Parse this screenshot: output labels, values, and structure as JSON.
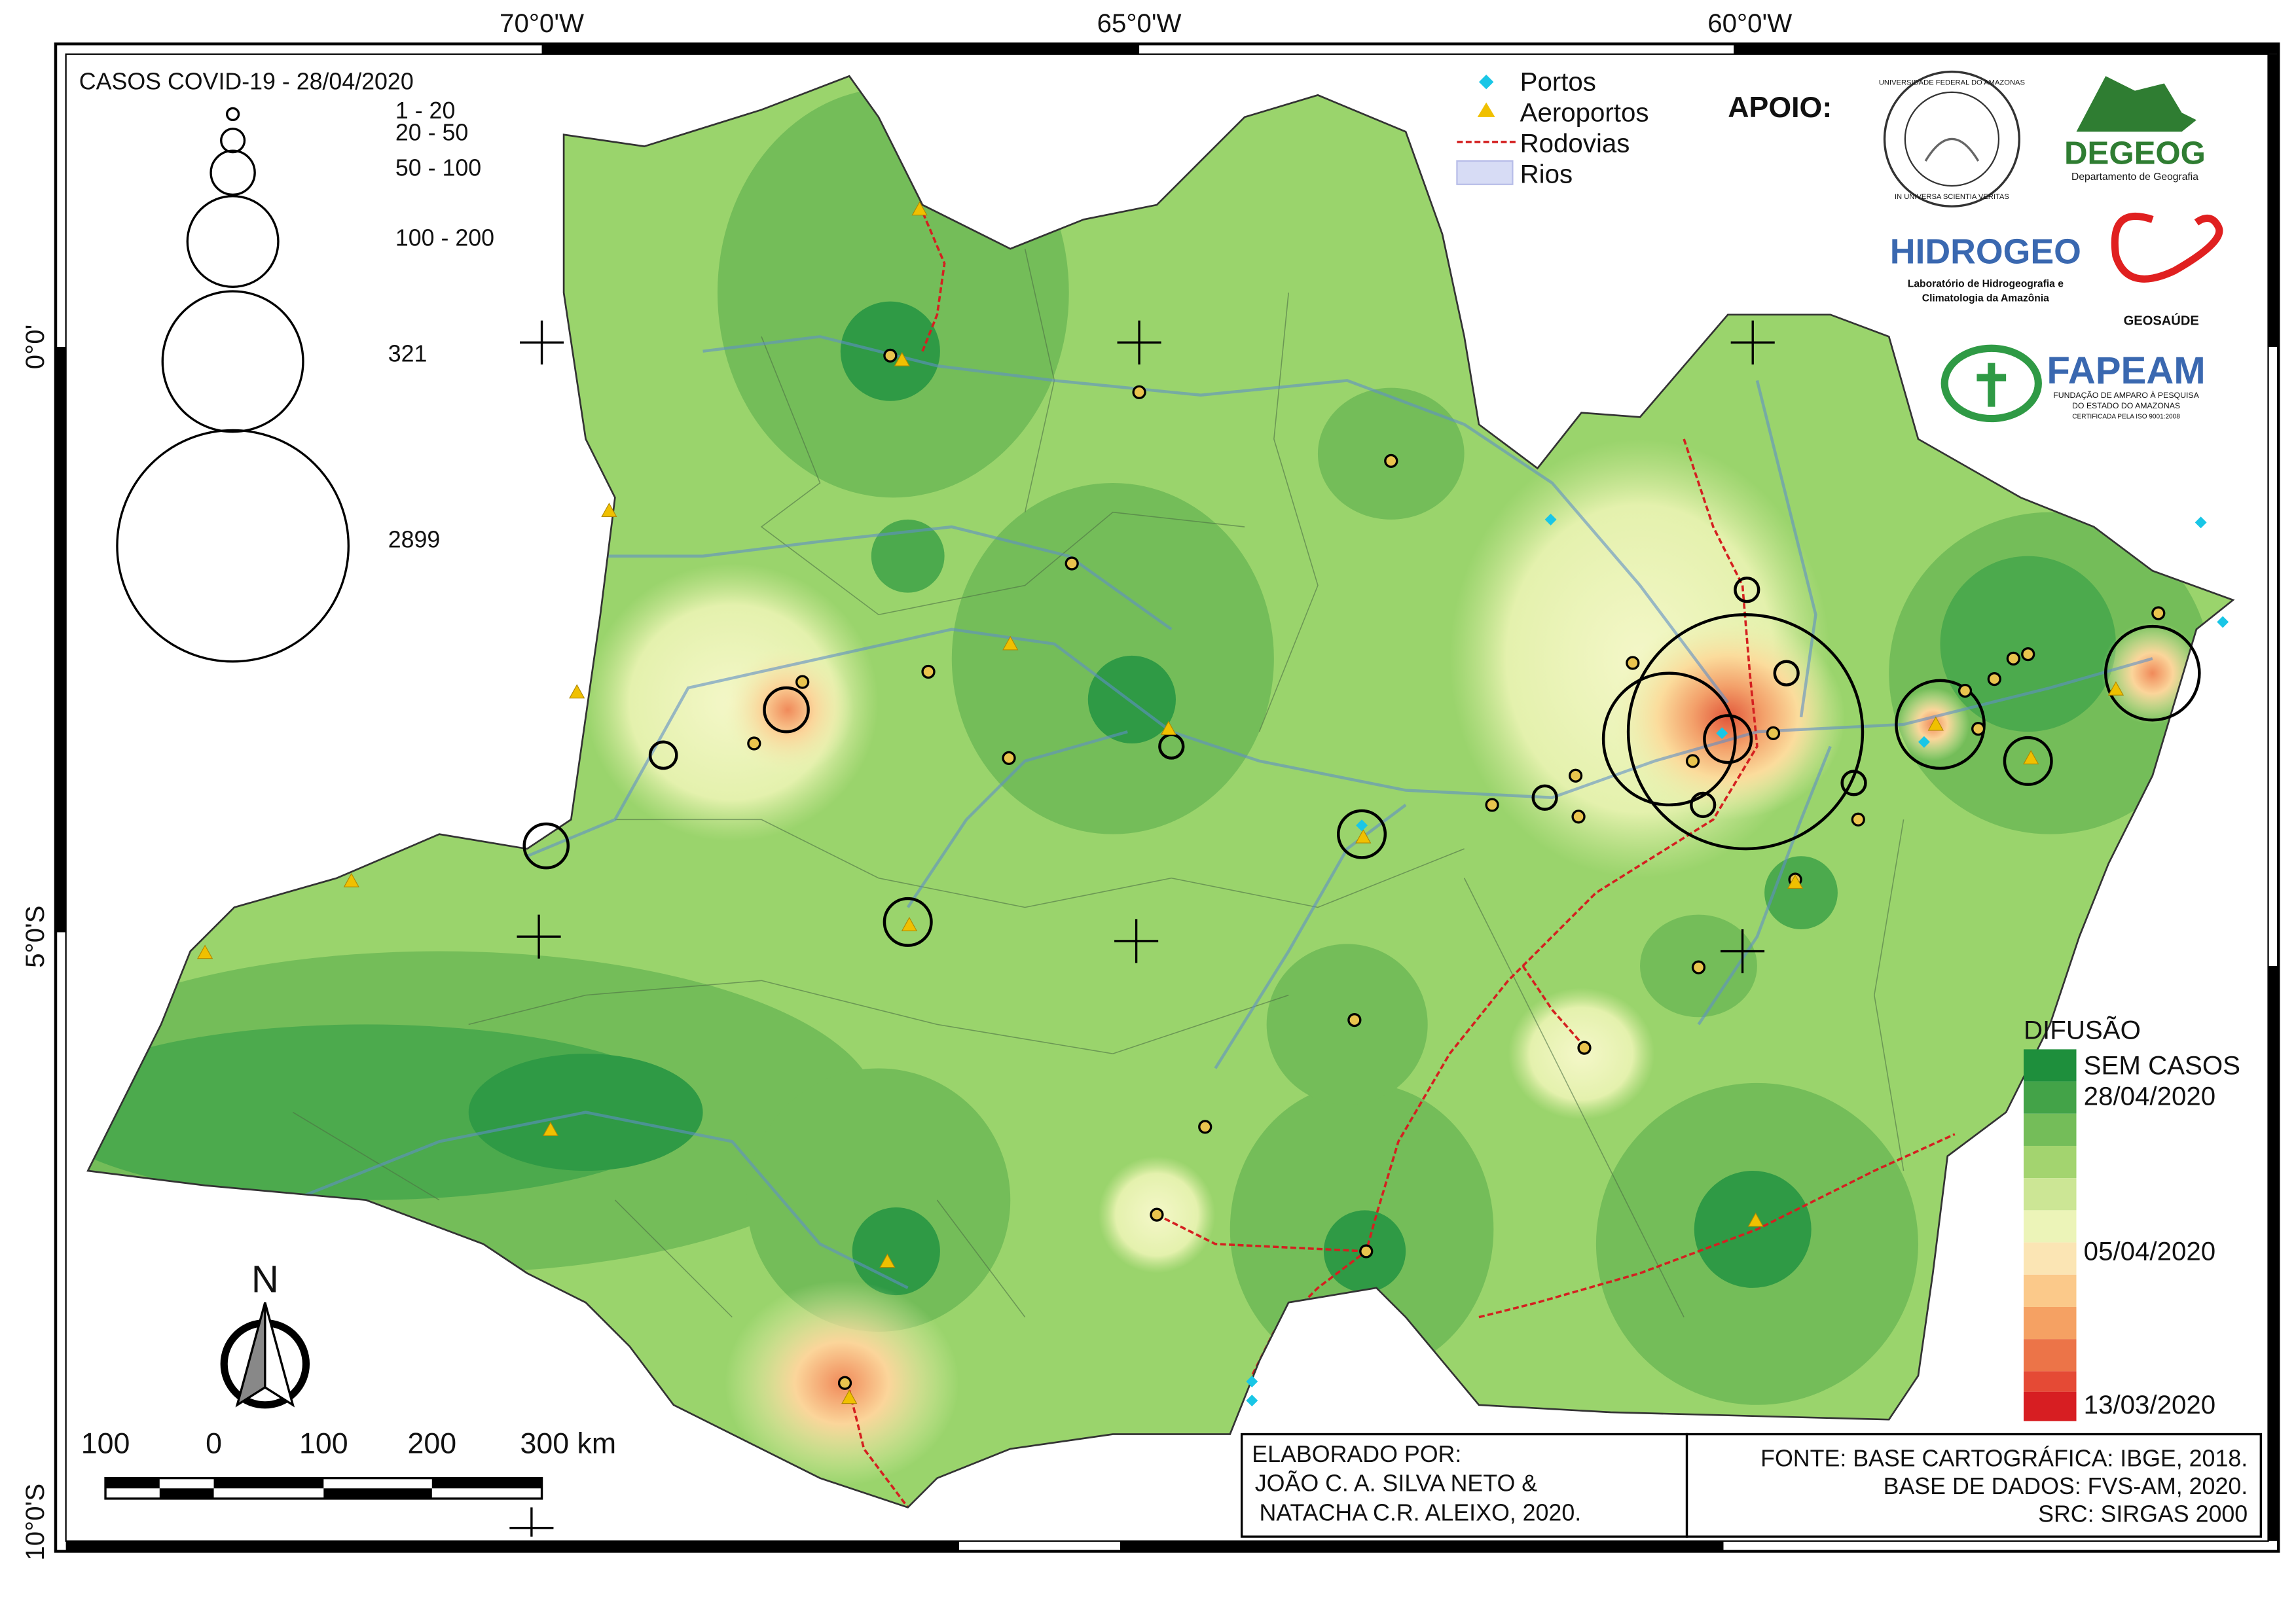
{
  "graticule": {
    "top_labels": [
      "70°0'W",
      "65°0'W",
      "60°0'W"
    ],
    "left_labels": [
      "0°0'",
      "5°0'S",
      "10°0'S"
    ]
  },
  "cases_legend": {
    "title": "CASOS COVID-19 - 28/04/2020",
    "classes": [
      "1 - 20",
      "20 - 50",
      "50 - 100",
      "100 - 200",
      "321",
      "2899"
    ]
  },
  "features_legend": {
    "items": [
      "Portos",
      "Aeroportos",
      "Rodovias",
      "Rios"
    ]
  },
  "support": {
    "title": "APOIO:",
    "ufam_ring": [
      "UNIVERSIDADE FEDERAL DO AMAZONAS",
      "IN UNIVERSA SCIENTIA VERITAS"
    ],
    "degeog": [
      "DEGEOG",
      "Departamento de Geografia"
    ],
    "hidrogeo": [
      "HIDROGEO",
      "Laboratório de Hidrogeografia e",
      "Climatologia da Amazônia"
    ],
    "geosaude": "GEOSAÚDE",
    "fapeam": [
      "FAPEAM",
      "FUNDAÇÃO DE AMPARO À PESQUISA",
      "DO ESTADO DO AMAZONAS",
      "CERTIFICADA PELA ISO 9001:2008"
    ]
  },
  "diffusion_legend": {
    "title": "DIFUSÃO",
    "labels": [
      "SEM CASOS",
      "28/04/2020",
      "05/04/2020",
      "13/03/2020"
    ]
  },
  "north_arrow": "N",
  "scale_bar": [
    "100",
    "0",
    "100",
    "200",
    "300 km"
  ],
  "credits": {
    "title": "ELABORADO POR:",
    "lines": [
      "JOÃO C. A. SILVA NETO &",
      "NATACHA C.R. ALEIXO, 2020."
    ]
  },
  "sources": [
    "FONTE: BASE CARTOGRÁFICA: IBGE, 2018.",
    "BASE DE DADOS: FVS-AM, 2020.",
    "SRC: SIRGAS 2000"
  ]
}
